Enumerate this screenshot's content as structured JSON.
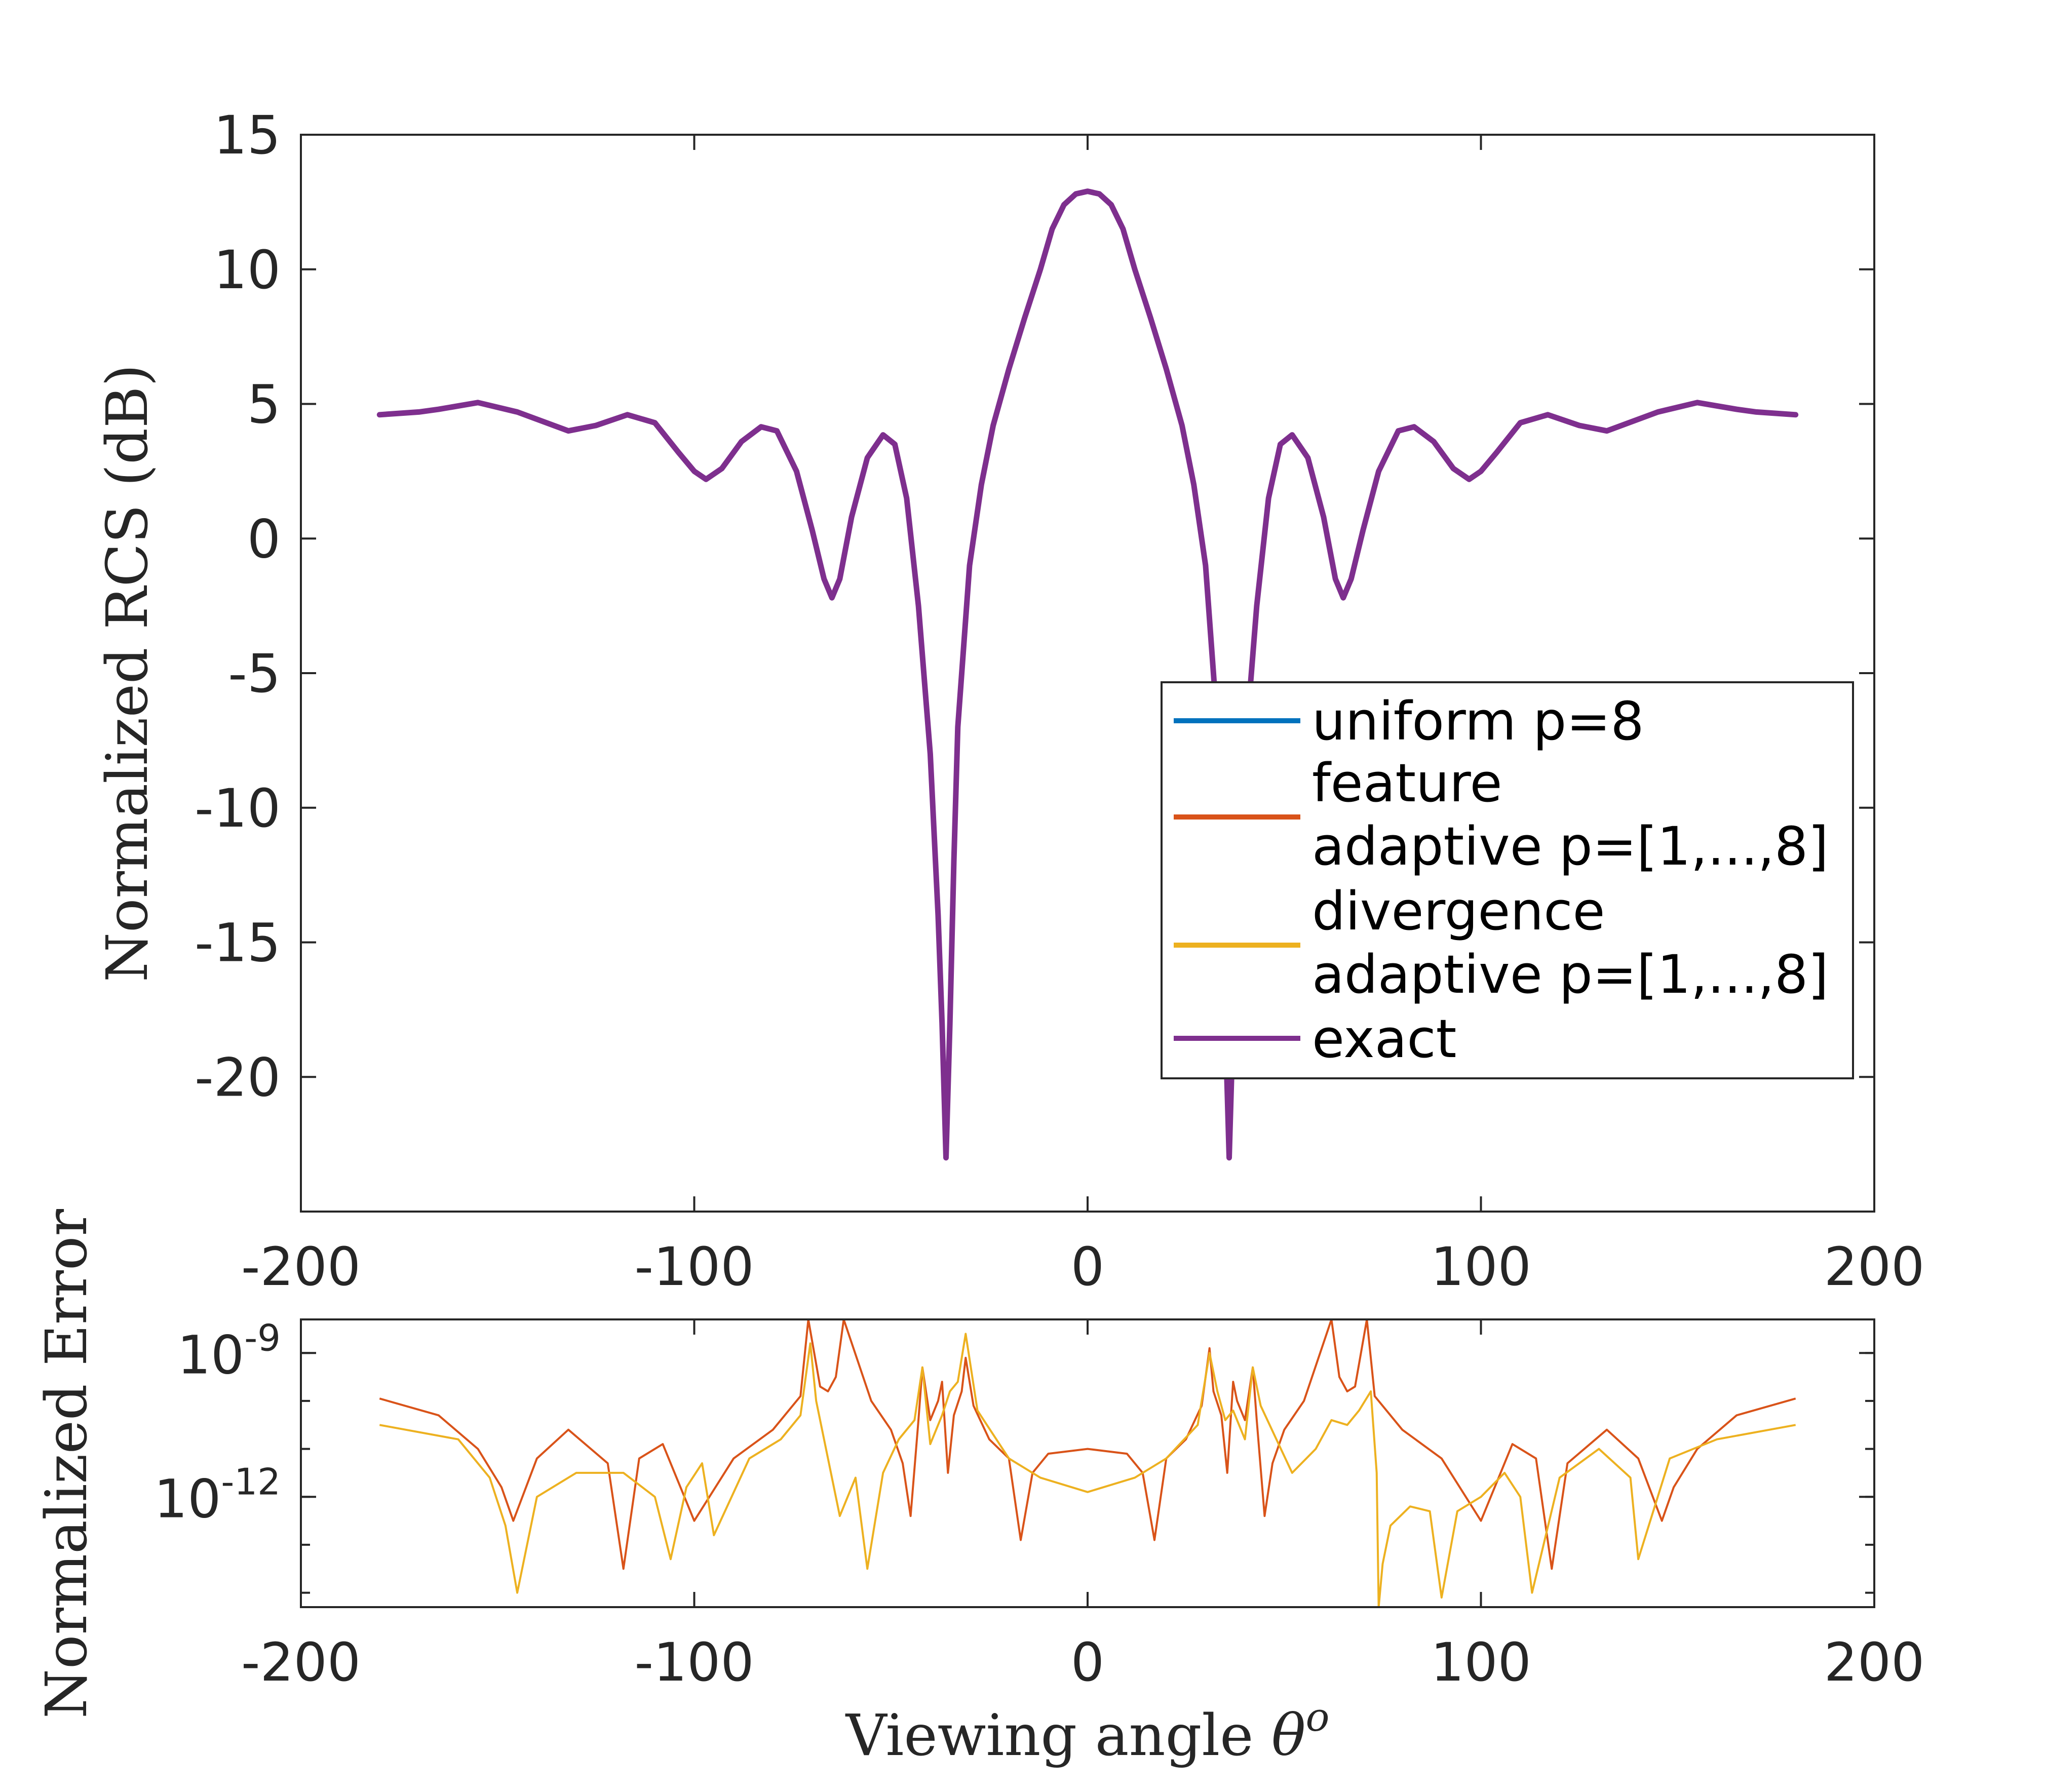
{
  "chart_data": [
    {
      "type": "line",
      "panel": "top",
      "ylabel": "Normalized RCS (dB)",
      "xlim": [
        -200,
        200
      ],
      "ylim": [
        -25,
        15
      ],
      "xticks": [
        -200,
        -100,
        0,
        100,
        200
      ],
      "yticks": [
        15,
        10,
        5,
        0,
        -5,
        -10,
        -15,
        -20
      ],
      "legend_position": "lower-right",
      "series": [
        {
          "name": "uniform p=8",
          "label_lines": [
            "uniform p=8"
          ],
          "color": "#0072BD"
        },
        {
          "name": "feature adaptive p=[1,...,8]",
          "label_lines": [
            "feature",
            "adaptive p=[1,...,8]"
          ],
          "color": "#D95319"
        },
        {
          "name": "divergence adaptive p=[1,...,8]",
          "label_lines": [
            "divergence",
            "adaptive p=[1,...,8]"
          ],
          "color": "#EDB120"
        },
        {
          "name": "exact",
          "label_lines": [
            "exact"
          ],
          "color": "#7E2F8E"
        }
      ],
      "curve": {
        "x": [
          -180,
          -170,
          -165,
          -155,
          -145,
          -132,
          -125,
          -117,
          -110,
          -104,
          -100,
          -97,
          -93,
          -88,
          -83,
          -79,
          -74,
          -70,
          -67,
          -65,
          -63,
          -60,
          -56,
          -52,
          -49,
          -46,
          -43,
          -40,
          -38,
          -37,
          -36,
          -35,
          -34,
          -33,
          -30,
          -27,
          -24,
          -20,
          -16,
          -12,
          -9,
          -6,
          -3,
          0,
          3,
          6,
          9,
          12,
          16,
          20,
          24,
          27,
          30,
          33,
          34,
          35,
          36,
          37,
          38,
          40,
          43,
          46,
          49,
          52,
          56,
          60,
          63,
          65,
          67,
          70,
          74,
          79,
          83,
          88,
          93,
          97,
          100,
          104,
          110,
          117,
          125,
          132,
          145,
          155,
          165,
          170,
          180
        ],
        "y": [
          4.6,
          4.7,
          4.8,
          5.05,
          4.7,
          4.0,
          4.2,
          4.6,
          4.3,
          3.2,
          2.5,
          2.2,
          2.6,
          3.6,
          4.15,
          4.0,
          2.5,
          0.3,
          -1.5,
          -2.2,
          -1.5,
          0.8,
          3.0,
          3.85,
          3.5,
          1.5,
          -2.5,
          -8.0,
          -14.0,
          -18.0,
          -23.0,
          -18.0,
          -12.0,
          -7.0,
          -1.0,
          2.0,
          4.2,
          6.3,
          8.2,
          10.0,
          11.5,
          12.4,
          12.8,
          12.9,
          12.8,
          12.4,
          11.5,
          10.0,
          8.2,
          6.3,
          4.2,
          2.0,
          -1.0,
          -7.0,
          -12.0,
          -18.0,
          -23.0,
          -18.0,
          -14.0,
          -8.0,
          -2.5,
          1.5,
          3.5,
          3.85,
          3.0,
          0.8,
          -1.5,
          -2.2,
          -1.5,
          0.3,
          2.5,
          4.0,
          4.15,
          3.6,
          2.6,
          2.2,
          2.5,
          3.2,
          4.3,
          4.6,
          4.2,
          4.0,
          4.7,
          5.05,
          4.8,
          4.7,
          4.6
        ]
      }
    },
    {
      "type": "line",
      "panel": "bottom",
      "ylabel": "Normalized Error",
      "xlabel": "Viewing angle θo",
      "xlabel_parts": {
        "text": "Viewing angle ",
        "symbol": "θ",
        "superscript": "o"
      },
      "xlim": [
        -200,
        200
      ],
      "yscale": "log",
      "ylim_exponent": [
        -14.3,
        -8.3
      ],
      "xticks": [
        -200,
        -100,
        0,
        100,
        200
      ],
      "yticks": [
        {
          "base": "10",
          "exponent": "-9",
          "value_exp": -9
        },
        {
          "base": "10",
          "exponent": "-12",
          "value_exp": -12
        }
      ],
      "series": [
        {
          "name": "feature adaptive p=[1,...,8]",
          "color": "#D95319",
          "x": [
            -180,
            -165,
            -155,
            -149,
            -146,
            -140,
            -132,
            -122,
            -118,
            -114,
            -108,
            -103,
            -100,
            -90,
            -80,
            -73,
            -71,
            -68,
            -66,
            -64,
            -62,
            -55,
            -50,
            -47,
            -45,
            -43,
            -42,
            -40,
            -38,
            -37,
            -35.5,
            -34,
            -32,
            -31,
            -29,
            -25,
            -20,
            -17,
            -14,
            -10,
            0,
            10,
            14,
            17,
            20,
            25,
            29,
            31,
            32,
            34,
            35.5,
            37,
            38,
            40,
            42,
            43,
            45,
            47,
            50,
            55,
            62,
            64,
            66,
            68,
            71,
            73,
            80,
            90,
            100,
            103,
            108,
            114,
            118,
            122,
            132,
            140,
            146,
            149,
            155,
            165,
            180
          ],
          "y_exp": [
            -9.95,
            -10.3,
            -11.0,
            -11.8,
            -12.5,
            -11.2,
            -10.6,
            -11.3,
            -13.5,
            -11.2,
            -10.9,
            -11.9,
            -12.5,
            -11.2,
            -10.6,
            -9.9,
            -8.3,
            -9.7,
            -9.8,
            -9.5,
            -8.3,
            -10.0,
            -10.6,
            -11.3,
            -12.4,
            -10.4,
            -9.3,
            -10.4,
            -10.0,
            -9.6,
            -11.5,
            -10.3,
            -9.8,
            -9.1,
            -10.1,
            -10.8,
            -11.2,
            -12.9,
            -11.5,
            -11.1,
            -11.0,
            -11.1,
            -11.5,
            -12.9,
            -11.2,
            -10.8,
            -10.1,
            -8.9,
            -9.8,
            -10.3,
            -11.5,
            -9.6,
            -10.0,
            -10.4,
            -9.3,
            -10.4,
            -12.4,
            -11.3,
            -10.6,
            -10.0,
            -8.3,
            -9.5,
            -9.8,
            -9.7,
            -8.3,
            -9.9,
            -10.6,
            -11.2,
            -12.5,
            -11.9,
            -10.9,
            -11.2,
            -13.5,
            -11.3,
            -10.6,
            -11.2,
            -12.5,
            -11.8,
            -11.0,
            -10.3,
            -9.95
          ]
        },
        {
          "name": "divergence adaptive p=[1,...,8]",
          "color": "#EDB120",
          "x": [
            -180,
            -160,
            -152,
            -148,
            -145,
            -140,
            -130,
            -118,
            -110,
            -106,
            -102,
            -98,
            -95,
            -86,
            -78,
            -73,
            -70.5,
            -69,
            -66,
            -63,
            -59,
            -56,
            -52,
            -48,
            -44,
            -42,
            -40,
            -37,
            -35,
            -33,
            -31,
            -28,
            -20,
            -12,
            0,
            12,
            20,
            28,
            31,
            33,
            35,
            37,
            40,
            42,
            44,
            48,
            52,
            58,
            62,
            66,
            69,
            72,
            73.5,
            74,
            75,
            77,
            82,
            87,
            90,
            94,
            100,
            106,
            110,
            113,
            120,
            130,
            138,
            140,
            148,
            160,
            180
          ],
          "y_exp": [
            -10.5,
            -10.8,
            -11.6,
            -12.6,
            -14.0,
            -12.0,
            -11.5,
            -11.5,
            -12.0,
            -13.3,
            -11.8,
            -11.3,
            -12.8,
            -11.2,
            -10.8,
            -10.3,
            -8.8,
            -10.0,
            -11.2,
            -12.4,
            -11.6,
            -13.5,
            -11.5,
            -10.8,
            -10.4,
            -9.3,
            -10.9,
            -10.3,
            -9.8,
            -9.6,
            -8.6,
            -10.2,
            -11.2,
            -11.6,
            -11.9,
            -11.6,
            -11.2,
            -10.5,
            -9.0,
            -9.8,
            -10.4,
            -10.2,
            -10.8,
            -9.3,
            -10.1,
            -10.8,
            -11.5,
            -11.0,
            -10.4,
            -10.5,
            -10.2,
            -9.8,
            -11.5,
            -14.3,
            -13.4,
            -12.6,
            -12.2,
            -12.3,
            -14.1,
            -12.3,
            -12.0,
            -11.5,
            -12.0,
            -14.0,
            -11.6,
            -11.0,
            -11.6,
            -13.3,
            -11.2,
            -10.8,
            -10.5
          ]
        }
      ]
    }
  ]
}
